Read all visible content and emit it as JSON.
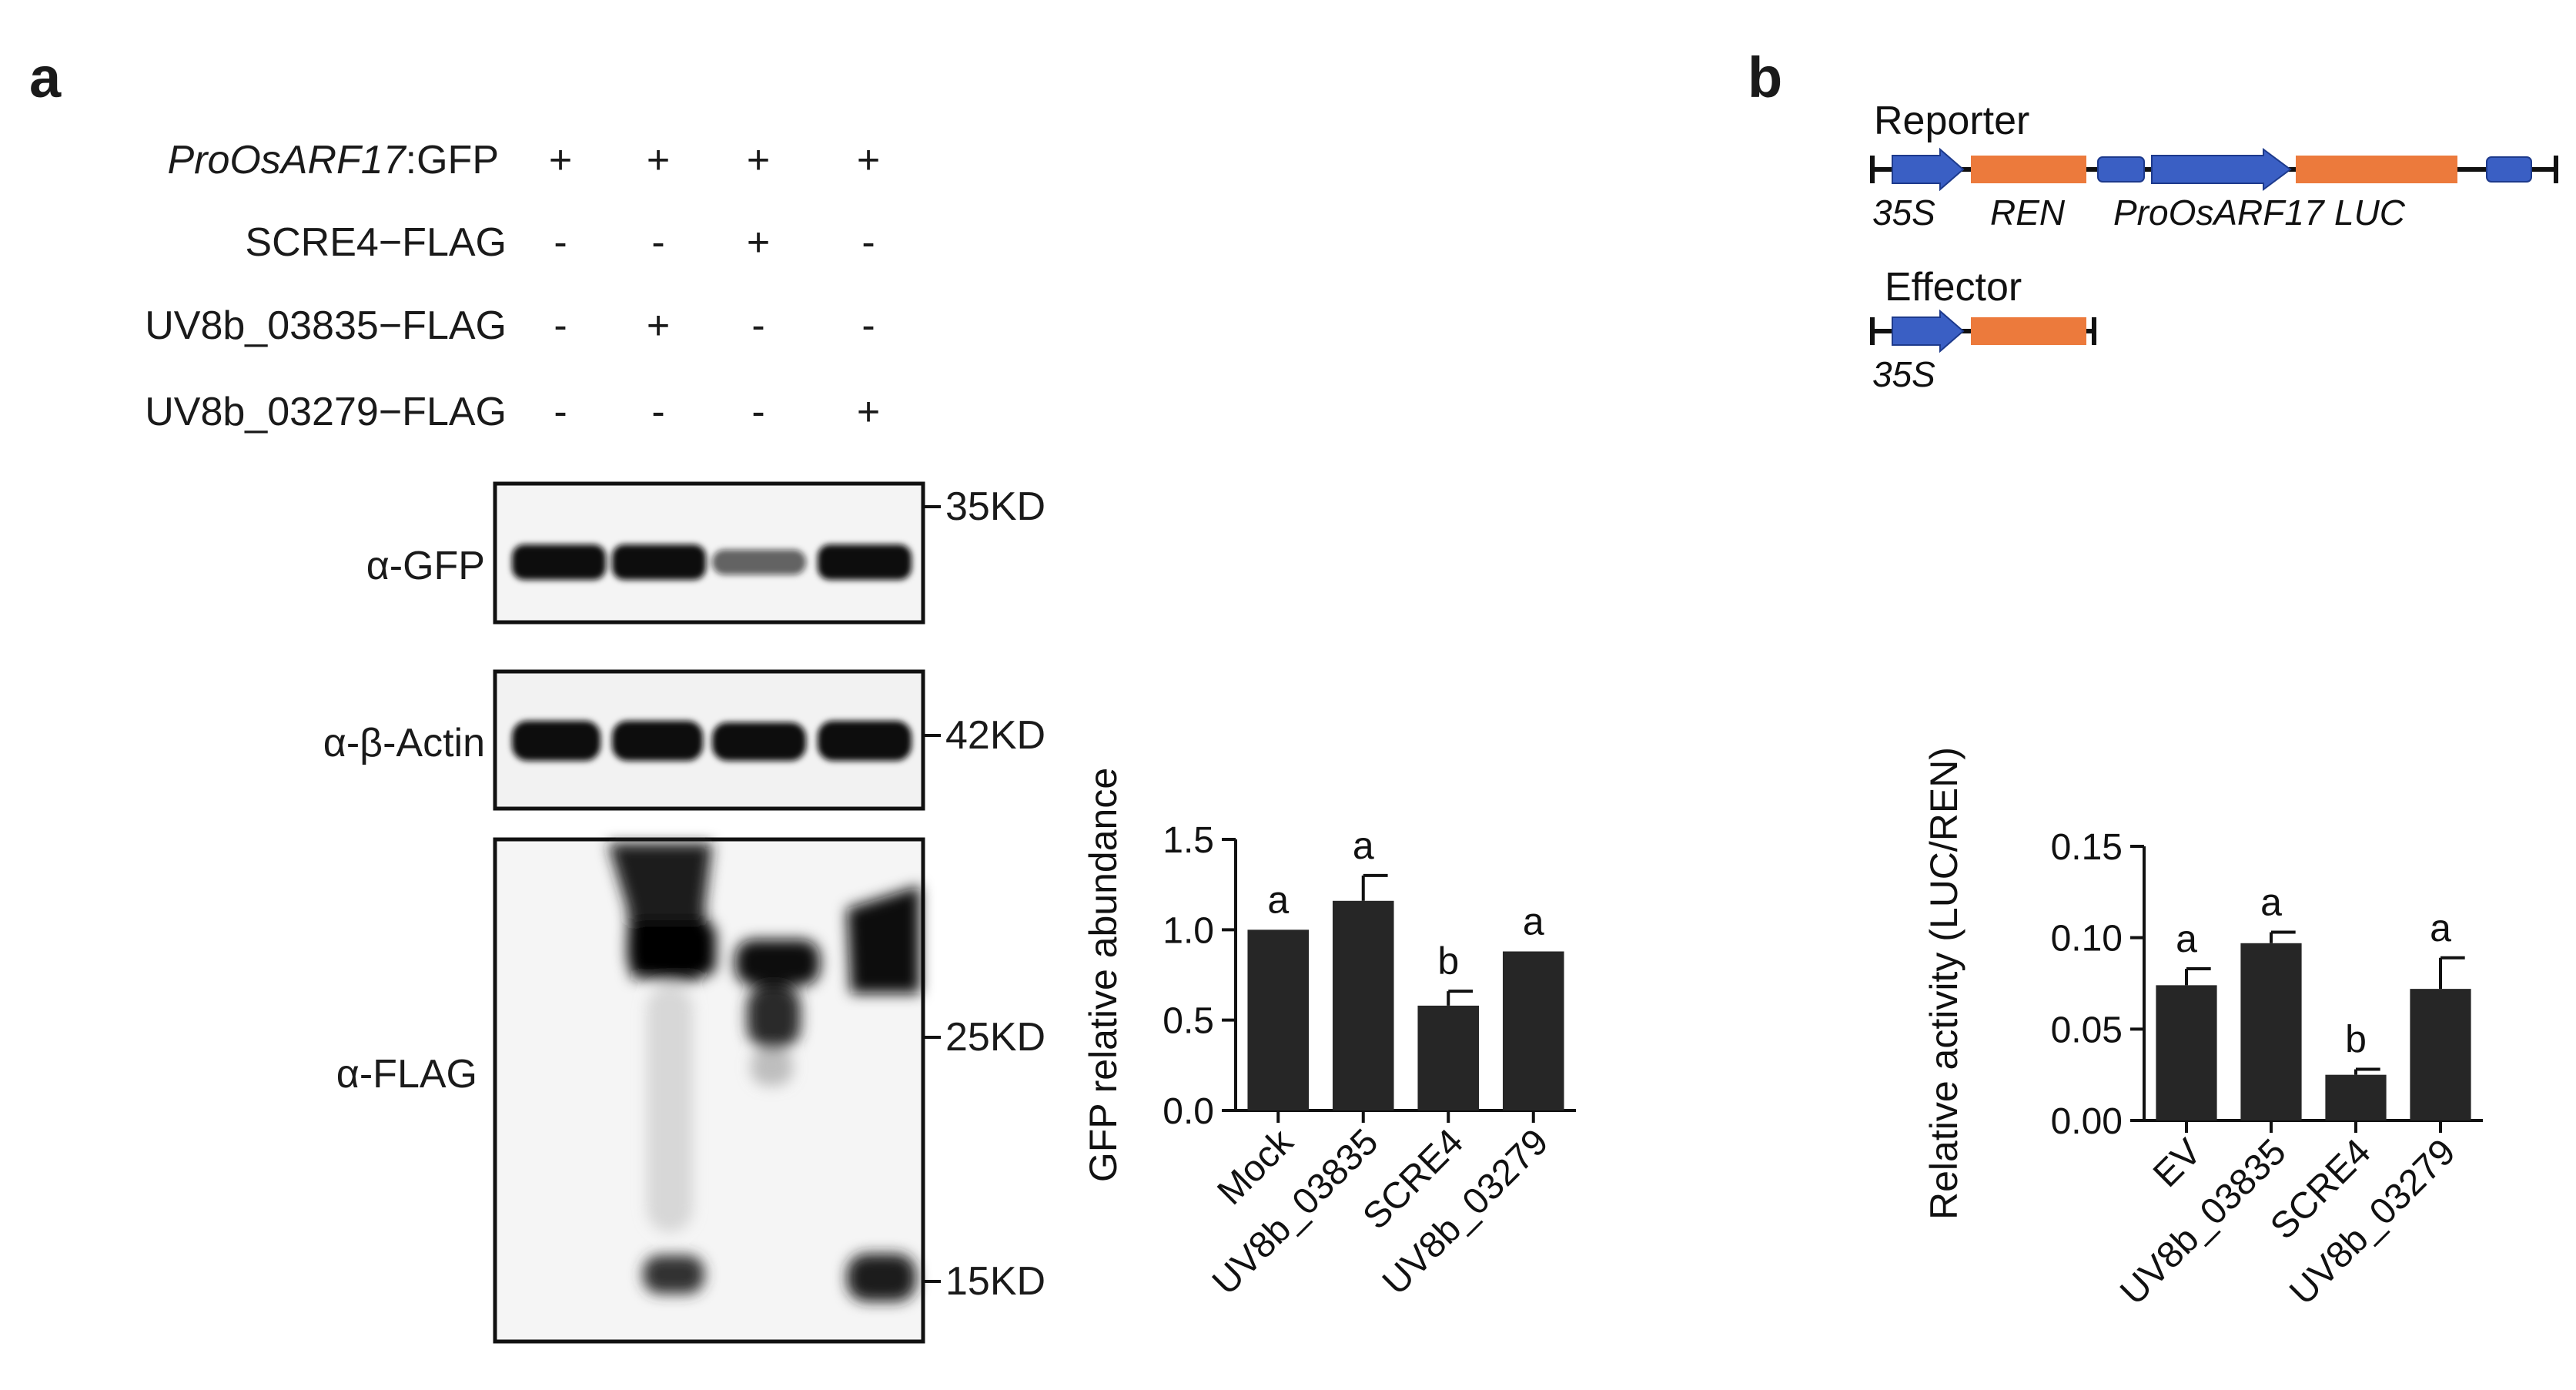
{
  "panels": {
    "a": "a",
    "b": "b"
  },
  "conditions": {
    "rows": [
      {
        "label_italic": "ProOsARF17",
        "label_rest": ":GFP",
        "signs": [
          "+",
          "+",
          "+",
          "+"
        ]
      },
      {
        "label_italic": "",
        "label_rest": "SCRE4−FLAG",
        "signs": [
          "-",
          "-",
          "+",
          "-"
        ]
      },
      {
        "label_italic": "",
        "label_rest": "UV8b_03835−FLAG",
        "signs": [
          "-",
          "+",
          "-",
          "-"
        ]
      },
      {
        "label_italic": "",
        "label_rest": "UV8b_03279−FLAG",
        "signs": [
          "-",
          "-",
          "-",
          "+"
        ]
      }
    ]
  },
  "blots": {
    "gfp_label": "α-GFP",
    "actin_label": "α-β-Actin",
    "flag_label": "α-FLAG",
    "markers": [
      "35KD",
      "42KD",
      "25KD",
      "15KD"
    ],
    "gfp_band_intensity": [
      1.0,
      1.0,
      0.45,
      1.0
    ],
    "colors": {
      "band": "#0d0d0d",
      "blot_bg": "#f4f4f4"
    }
  },
  "construct": {
    "reporter_label": "Reporter",
    "effector_label": "Effector",
    "reporter_parts": [
      "35S",
      "REN",
      "ProOsARF17",
      "LUC"
    ],
    "effector_parts": [
      "35S"
    ],
    "colors": {
      "promoter": "#3a5fc4",
      "gene": "#ec7a3c",
      "line": "#111111"
    }
  },
  "chart_data": [
    {
      "type": "bar",
      "categories": [
        "Mock",
        "UV8b_03835",
        "SCRE4",
        "UV8b_03279"
      ],
      "values": [
        1.0,
        1.16,
        0.58,
        0.88
      ],
      "errors": [
        0,
        0.14,
        0.08,
        0.0
      ],
      "letters": [
        "a",
        "a",
        "b",
        "a"
      ],
      "ylabel": "GFP relative abundance",
      "ylim": [
        0,
        1.5
      ],
      "yticks": [
        "0.0",
        "0.5",
        "1.0",
        "1.5"
      ],
      "bar_color": "#262626"
    },
    {
      "type": "bar",
      "categories": [
        "EV",
        "UV8b_03835",
        "SCRE4",
        "UV8b_03279"
      ],
      "values": [
        0.074,
        0.097,
        0.025,
        0.072
      ],
      "errors": [
        0.009,
        0.006,
        0.003,
        0.017
      ],
      "letters": [
        "a",
        "a",
        "b",
        "a"
      ],
      "ylabel": "Relative activity (LUC/REN)",
      "ylim": [
        0,
        0.15
      ],
      "yticks": [
        "0.00",
        "0.05",
        "0.10",
        "0.15"
      ],
      "bar_color": "#262626"
    }
  ]
}
